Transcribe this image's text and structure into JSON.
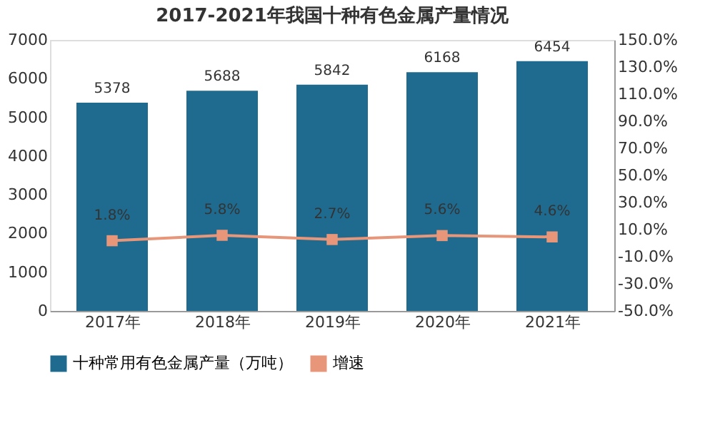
{
  "chart_data": {
    "type": "bar",
    "title": "2017-2021年我国十种有色金属产量情况",
    "categories": [
      "2017年",
      "2018年",
      "2019年",
      "2020年",
      "2021年"
    ],
    "series": [
      {
        "name": "十种常用有色金属产量（万吨）",
        "color": "#1f6b8f",
        "type": "bar",
        "values": [
          5378,
          5688,
          5842,
          6168,
          6454
        ],
        "value_labels": [
          "5378",
          "5688",
          "5842",
          "6168",
          "6454"
        ]
      },
      {
        "name": "增速",
        "color": "#e8967a",
        "type": "line",
        "axis": "y2",
        "marker": "square",
        "values": [
          1.8,
          5.8,
          2.7,
          5.6,
          4.6
        ],
        "value_labels": [
          "1.8%",
          "5.8%",
          "2.7%",
          "5.6%",
          "4.6%"
        ]
      }
    ],
    "ylim": [
      0,
      7000
    ],
    "yticks": [
      0,
      1000,
      2000,
      3000,
      4000,
      5000,
      6000,
      7000
    ],
    "y2lim": [
      -50,
      150
    ],
    "y2ticks": [
      {
        "value": -50,
        "label": "-50.0%"
      },
      {
        "value": -30,
        "label": "-30.0%"
      },
      {
        "value": -10,
        "label": "-10.0%"
      },
      {
        "value": 10,
        "label": "10.0%"
      },
      {
        "value": 30,
        "label": "30.0%"
      },
      {
        "value": 50,
        "label": "50.0%"
      },
      {
        "value": 70,
        "label": "70.0%"
      },
      {
        "value": 90,
        "label": "90.0%"
      },
      {
        "value": 110,
        "label": "110.0%"
      },
      {
        "value": 130,
        "label": "130.0%"
      },
      {
        "value": 150,
        "label": "150.0%"
      }
    ],
    "grid": false,
    "legend": "bottom"
  }
}
